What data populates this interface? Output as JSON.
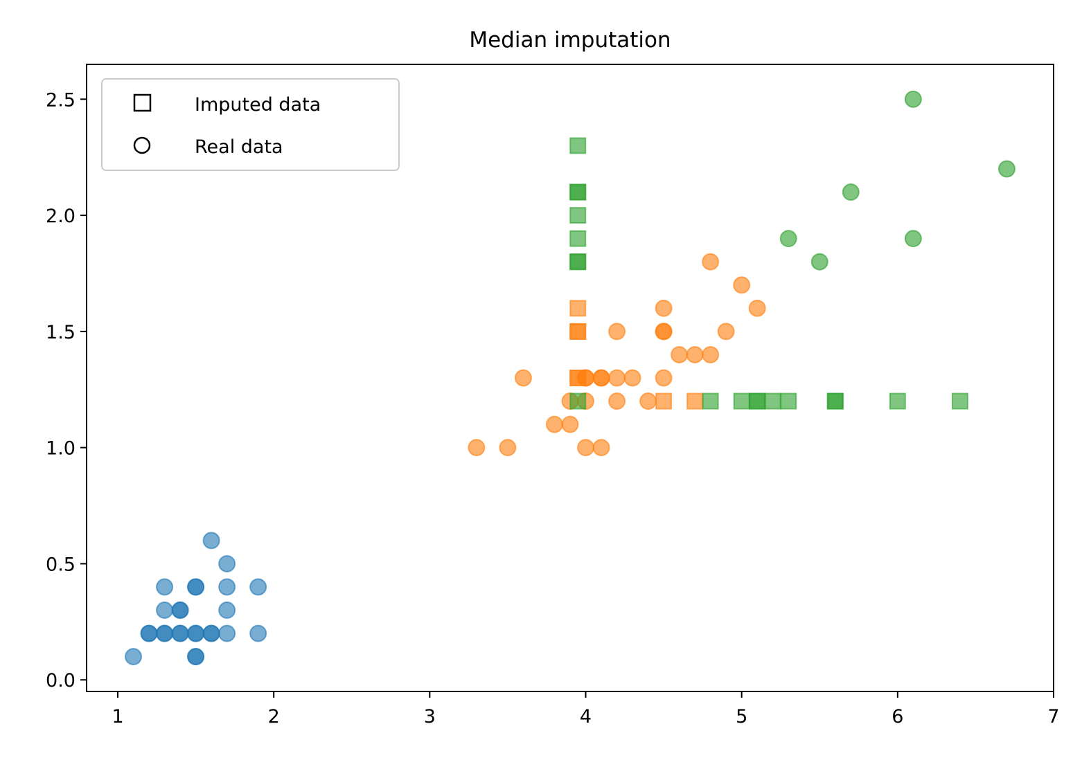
{
  "chart_data": {
    "type": "scatter",
    "title": "Median imputation",
    "xlabel": "",
    "ylabel": "",
    "xlim": [
      0.8,
      7.0
    ],
    "ylim": [
      -0.05,
      2.65
    ],
    "xticks": [
      1,
      2,
      3,
      4,
      5,
      6,
      7
    ],
    "yticks": [
      0.0,
      0.5,
      1.0,
      1.5,
      2.0,
      2.5
    ],
    "grid": false,
    "legend": {
      "placement": "top-left",
      "entries": [
        {
          "label": "Imputed data",
          "marker": "square"
        },
        {
          "label": "Real data",
          "marker": "circle"
        }
      ]
    },
    "series": [
      {
        "color": "#1f77b4",
        "real": [
          [
            1.1,
            0.1
          ],
          [
            1.2,
            0.2
          ],
          [
            1.2,
            0.2
          ],
          [
            1.3,
            0.2
          ],
          [
            1.3,
            0.2
          ],
          [
            1.3,
            0.3
          ],
          [
            1.3,
            0.4
          ],
          [
            1.4,
            0.2
          ],
          [
            1.4,
            0.2
          ],
          [
            1.4,
            0.3
          ],
          [
            1.4,
            0.3
          ],
          [
            1.5,
            0.1
          ],
          [
            1.5,
            0.1
          ],
          [
            1.5,
            0.2
          ],
          [
            1.5,
            0.2
          ],
          [
            1.5,
            0.4
          ],
          [
            1.5,
            0.4
          ],
          [
            1.6,
            0.2
          ],
          [
            1.6,
            0.2
          ],
          [
            1.6,
            0.6
          ],
          [
            1.7,
            0.2
          ],
          [
            1.7,
            0.3
          ],
          [
            1.7,
            0.4
          ],
          [
            1.7,
            0.5
          ],
          [
            1.9,
            0.2
          ],
          [
            1.9,
            0.4
          ]
        ],
        "imputed": []
      },
      {
        "color": "#ff7f0e",
        "real": [
          [
            3.3,
            1.0
          ],
          [
            3.5,
            1.0
          ],
          [
            3.6,
            1.3
          ],
          [
            3.8,
            1.1
          ],
          [
            3.9,
            1.1
          ],
          [
            3.9,
            1.2
          ],
          [
            4.0,
            1.0
          ],
          [
            4.0,
            1.2
          ],
          [
            4.0,
            1.3
          ],
          [
            4.0,
            1.3
          ],
          [
            4.1,
            1.0
          ],
          [
            4.1,
            1.3
          ],
          [
            4.1,
            1.3
          ],
          [
            4.2,
            1.2
          ],
          [
            4.2,
            1.3
          ],
          [
            4.2,
            1.5
          ],
          [
            4.3,
            1.3
          ],
          [
            4.4,
            1.2
          ],
          [
            4.5,
            1.3
          ],
          [
            4.5,
            1.5
          ],
          [
            4.5,
            1.5
          ],
          [
            4.5,
            1.6
          ],
          [
            4.6,
            1.4
          ],
          [
            4.7,
            1.4
          ],
          [
            4.8,
            1.4
          ],
          [
            4.8,
            1.8
          ],
          [
            4.9,
            1.5
          ],
          [
            5.0,
            1.7
          ],
          [
            5.1,
            1.6
          ]
        ],
        "imputed": [
          [
            3.95,
            1.3
          ],
          [
            3.95,
            1.3
          ],
          [
            3.95,
            1.5
          ],
          [
            3.95,
            1.5
          ],
          [
            3.95,
            1.6
          ],
          [
            4.5,
            1.2
          ],
          [
            4.7,
            1.2
          ]
        ]
      },
      {
        "color": "#2ca02c",
        "real": [
          [
            5.3,
            1.9
          ],
          [
            5.5,
            1.8
          ],
          [
            5.7,
            2.1
          ],
          [
            6.1,
            1.9
          ],
          [
            6.1,
            2.5
          ],
          [
            6.7,
            2.2
          ]
        ],
        "imputed": [
          [
            3.95,
            1.2
          ],
          [
            3.95,
            1.8
          ],
          [
            3.95,
            1.8
          ],
          [
            3.95,
            1.9
          ],
          [
            3.95,
            2.0
          ],
          [
            3.95,
            2.1
          ],
          [
            3.95,
            2.1
          ],
          [
            3.95,
            2.3
          ],
          [
            4.8,
            1.2
          ],
          [
            5.0,
            1.2
          ],
          [
            5.1,
            1.2
          ],
          [
            5.1,
            1.2
          ],
          [
            5.2,
            1.2
          ],
          [
            5.3,
            1.2
          ],
          [
            5.6,
            1.2
          ],
          [
            5.6,
            1.2
          ],
          [
            6.0,
            1.2
          ],
          [
            6.4,
            1.2
          ]
        ]
      }
    ]
  }
}
